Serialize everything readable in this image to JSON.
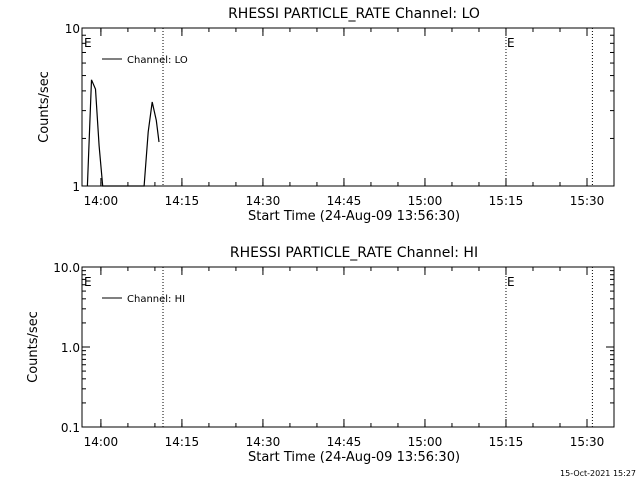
{
  "timestamp": "15-Oct-2021 15:27",
  "chart_data": [
    {
      "type": "line",
      "title": "RHESSI PARTICLE_RATE Channel: LO",
      "xlabel": "Start Time (24-Aug-09 13:56:30)",
      "ylabel": "Counts/sec",
      "yscale": "log",
      "ylim": [
        1,
        10
      ],
      "xlim": [
        "13:56:30",
        "15:35:00"
      ],
      "x_ticks": [
        "14:00",
        "14:15",
        "14:30",
        "14:45",
        "15:00",
        "15:15",
        "15:30"
      ],
      "y_ticks": [
        "1",
        "10"
      ],
      "legend": "top-left",
      "vertical_lines": [
        "14:11:30",
        "15:15:00",
        "15:31:00"
      ],
      "markers": [
        {
          "label": "E",
          "time": "13:56:30"
        },
        {
          "label": "E",
          "time": "15:15:00"
        }
      ],
      "series": [
        {
          "name": "Channel: LO",
          "x": [
            "13:57:30",
            "13:58:15",
            "13:59:00",
            "13:59:40",
            "14:00:20",
            "14:01:00",
            "14:08:00",
            "14:08:45",
            "14:09:30",
            "14:10:15",
            "14:10:45"
          ],
          "y": [
            1.0,
            4.7,
            4.1,
            1.8,
            1.0,
            1.0,
            1.0,
            2.2,
            3.4,
            2.6,
            1.9
          ]
        }
      ]
    },
    {
      "type": "line",
      "title": "RHESSI PARTICLE_RATE Channel: HI",
      "xlabel": "Start Time (24-Aug-09 13:56:30)",
      "ylabel": "Counts/sec",
      "yscale": "log",
      "ylim": [
        0.1,
        10
      ],
      "xlim": [
        "13:56:30",
        "15:35:00"
      ],
      "x_ticks": [
        "14:00",
        "14:15",
        "14:30",
        "14:45",
        "15:00",
        "15:15",
        "15:30"
      ],
      "y_ticks": [
        "0.1",
        "1.0",
        "10.0"
      ],
      "legend": "top-left",
      "vertical_lines": [
        "14:11:30",
        "15:15:00",
        "15:31:00"
      ],
      "markers": [
        {
          "label": "E",
          "time": "13:56:30"
        },
        {
          "label": "E",
          "time": "15:15:00"
        }
      ],
      "series": [
        {
          "name": "Channel: HI",
          "x": [],
          "y": []
        }
      ]
    }
  ]
}
